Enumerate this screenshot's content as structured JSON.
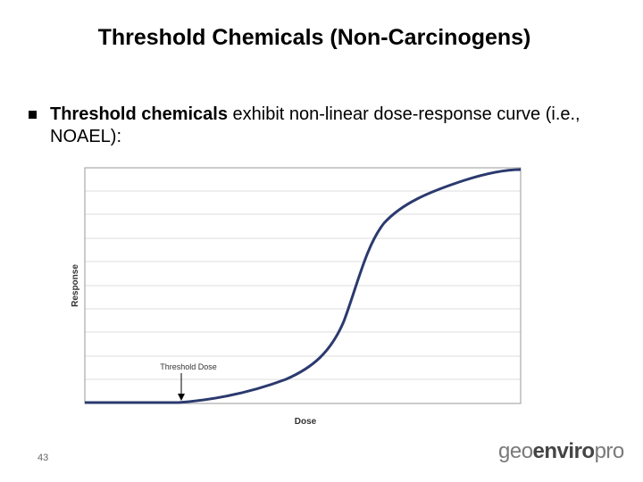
{
  "header": {
    "title": "Threshold Chemicals (Non-Carcinogens)"
  },
  "bullet": {
    "bold": "Threshold chemicals",
    "text": " exhibit non-linear dose-response curve (i.e., NOAEL):"
  },
  "figure": {
    "y_label": "Response",
    "x_label": "Dose",
    "annotation": "Threshold Dose"
  },
  "footer": {
    "page": "43",
    "logo": [
      "geo",
      "enviro",
      "pro"
    ]
  }
}
